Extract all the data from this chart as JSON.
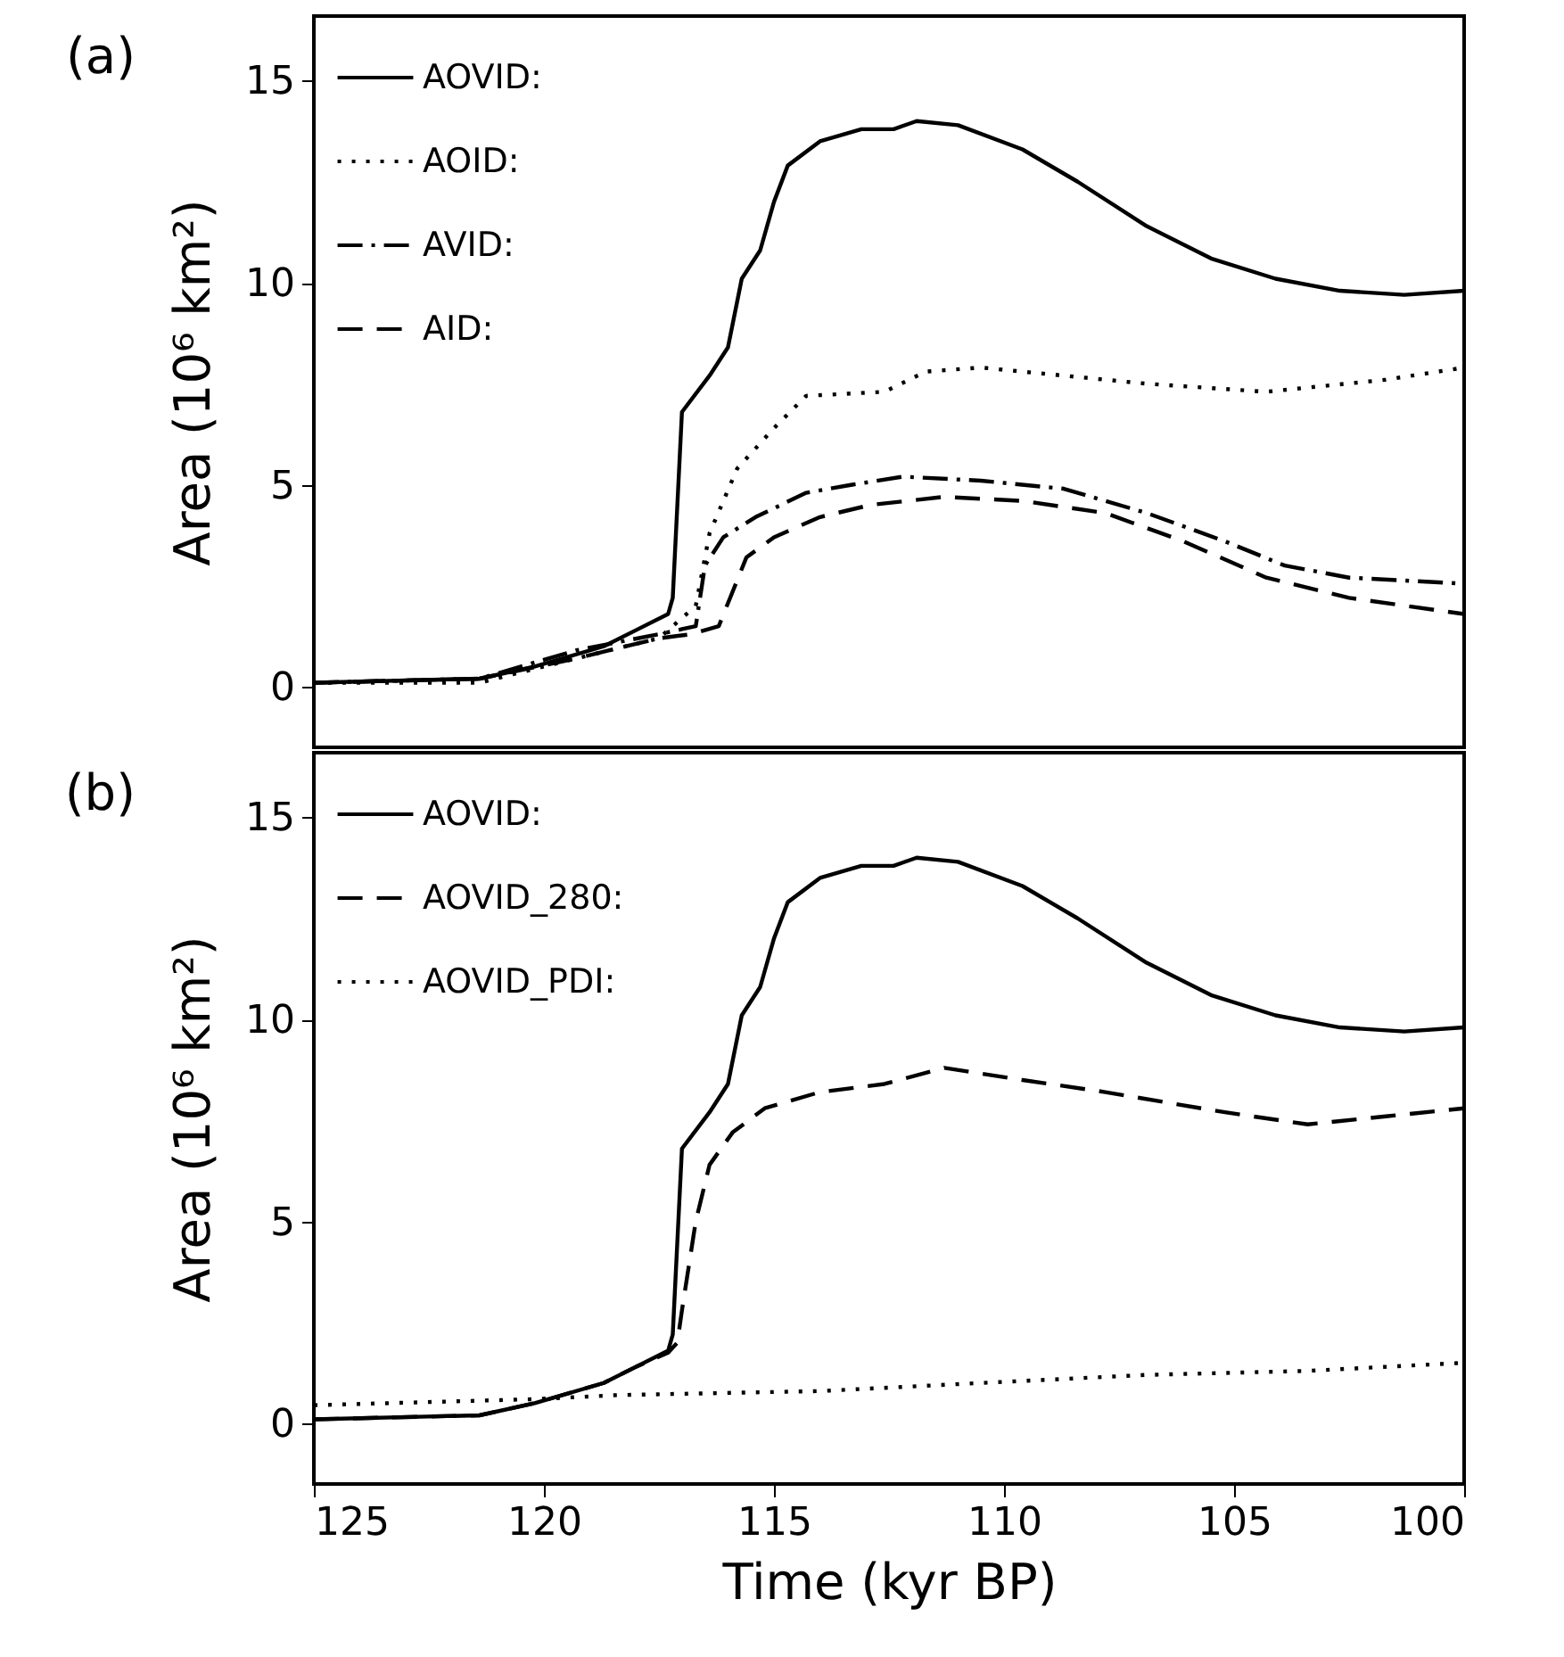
{
  "chart_data": [
    {
      "type": "line",
      "annotations": [
        "(a)"
      ],
      "ylabel": "Area (10⁶ km²)",
      "xlim": [
        125,
        100
      ],
      "xticks": [
        125,
        120,
        115,
        110,
        105,
        100
      ],
      "ylim": [
        -1.5,
        16.6
      ],
      "yticks": [
        0,
        5,
        10,
        15
      ],
      "tick_labels": "y",
      "grid": false,
      "legend": "top left",
      "series": [
        {
          "name": "AOVID:",
          "color": "#000000",
          "line_style": "solid",
          "x": [
            125,
            121.4,
            120.2,
            118.7,
            118.0,
            117.3,
            117.2,
            117.0,
            116.4,
            116.0,
            115.7,
            115.3,
            115.0,
            114.7,
            114.0,
            113.1,
            112.4,
            111.9,
            111.0,
            109.6,
            108.4,
            106.9,
            105.5,
            104.1,
            102.7,
            101.3,
            100
          ],
          "values": [
            0.1,
            0.2,
            0.5,
            1.0,
            1.4,
            1.8,
            2.2,
            6.8,
            7.7,
            8.4,
            10.1,
            10.8,
            12.0,
            12.9,
            13.5,
            13.8,
            13.8,
            14.0,
            13.9,
            13.3,
            12.5,
            11.4,
            10.6,
            10.1,
            9.8,
            9.7,
            9.8
          ]
        },
        {
          "name": "AOID:",
          "color": "#000000",
          "line_style": "dotted",
          "x": [
            125,
            121.4,
            119.3,
            117.5,
            116.7,
            116.4,
            115.8,
            115.0,
            114.3,
            112.6,
            111.7,
            110.5,
            108.7,
            106.9,
            104.3,
            101.7,
            100
          ],
          "values": [
            0.1,
            0.1,
            0.7,
            1.2,
            2.0,
            3.8,
            5.4,
            6.4,
            7.2,
            7.3,
            7.8,
            7.9,
            7.7,
            7.5,
            7.3,
            7.6,
            7.9
          ]
        },
        {
          "name": "AVID:",
          "color": "#000000",
          "line_style": "dashdot",
          "x": [
            125,
            121.4,
            119.3,
            117.5,
            116.7,
            116.5,
            116.1,
            115.4,
            114.3,
            113.3,
            112.2,
            110.5,
            108.7,
            106.9,
            105.2,
            103.9,
            102.5,
            100
          ],
          "values": [
            0.1,
            0.2,
            0.9,
            1.3,
            1.5,
            3.0,
            3.7,
            4.2,
            4.8,
            5.0,
            5.2,
            5.1,
            4.9,
            4.3,
            3.6,
            3.0,
            2.7,
            2.55
          ]
        },
        {
          "name": "AID:",
          "color": "#000000",
          "line_style": "dashed",
          "x": [
            125,
            121.4,
            119.3,
            117.5,
            116.8,
            116.2,
            115.6,
            115.0,
            114.0,
            112.9,
            111.3,
            109.6,
            107.8,
            106.1,
            104.3,
            102.5,
            100
          ],
          "values": [
            0.1,
            0.2,
            0.7,
            1.2,
            1.3,
            1.5,
            3.2,
            3.7,
            4.2,
            4.5,
            4.7,
            4.6,
            4.3,
            3.6,
            2.7,
            2.2,
            1.8
          ]
        }
      ]
    },
    {
      "type": "line",
      "annotations": [
        "(b)"
      ],
      "xlabel": "Time (kyr BP)",
      "ylabel": "Area (10⁶ km²)",
      "xlim": [
        125,
        100
      ],
      "xticks": [
        125,
        120,
        115,
        110,
        105,
        100
      ],
      "ylim": [
        -1.5,
        16.6
      ],
      "yticks": [
        0,
        5,
        10,
        15
      ],
      "grid": false,
      "legend": "top left",
      "series": [
        {
          "name": "AOVID:",
          "color": "#000000",
          "line_style": "solid",
          "x": [
            125,
            121.4,
            120.2,
            118.7,
            118.0,
            117.3,
            117.2,
            117.0,
            116.4,
            116.0,
            115.7,
            115.3,
            115.0,
            114.7,
            114.0,
            113.1,
            112.4,
            111.9,
            111.0,
            109.6,
            108.4,
            106.9,
            105.5,
            104.1,
            102.7,
            101.3,
            100
          ],
          "values": [
            0.1,
            0.2,
            0.5,
            1.0,
            1.4,
            1.8,
            2.2,
            6.8,
            7.7,
            8.4,
            10.1,
            10.8,
            12.0,
            12.9,
            13.5,
            13.8,
            13.8,
            14.0,
            13.9,
            13.3,
            12.5,
            11.4,
            10.6,
            10.1,
            9.8,
            9.7,
            9.8
          ]
        },
        {
          "name": "AOVID_280:",
          "color": "#000000",
          "line_style": "dashed",
          "x": [
            125,
            121.4,
            120.2,
            118.7,
            118.0,
            117.3,
            117.1,
            117.0,
            116.7,
            116.4,
            115.9,
            115.2,
            114.0,
            112.6,
            111.3,
            109.6,
            107.8,
            105.2,
            103.4,
            101.7,
            100
          ],
          "values": [
            0.1,
            0.2,
            0.5,
            1.0,
            1.4,
            1.75,
            2.0,
            2.8,
            5.0,
            6.4,
            7.2,
            7.8,
            8.2,
            8.4,
            8.8,
            8.5,
            8.2,
            7.7,
            7.4,
            7.6,
            7.8
          ]
        },
        {
          "name": "AOVID_PDI:",
          "color": "#000000",
          "line_style": "dotted",
          "x": [
            125,
            120.2,
            118.4,
            114.0,
            110.5,
            106.9,
            103.4,
            100
          ],
          "values": [
            0.45,
            0.6,
            0.7,
            0.8,
            1.0,
            1.2,
            1.3,
            1.5
          ]
        }
      ]
    }
  ]
}
